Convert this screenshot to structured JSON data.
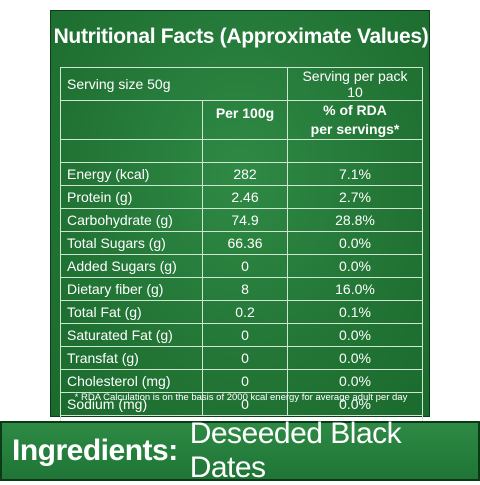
{
  "title": "Nutritional Facts (Approximate Values)",
  "serving_size": "Serving size 50g",
  "serving_per_pack": "Serving per pack 10",
  "col_per100": "Per 100g",
  "col_rda_line1": "% of RDA",
  "col_rda_line2": "per servings*",
  "rows": [
    {
      "name": "Energy (kcal)",
      "per100": "282",
      "rda": "7.1%"
    },
    {
      "name": "Protein (g)",
      "per100": "2.46",
      "rda": "2.7%"
    },
    {
      "name": "Carbohydrate (g)",
      "per100": "74.9",
      "rda": "28.8%"
    },
    {
      "name": "Total Sugars (g)",
      "per100": "66.36",
      "rda": "0.0%"
    },
    {
      "name": "Added Sugars (g)",
      "per100": "0",
      "rda": "0.0%"
    },
    {
      "name": "Dietary fiber  (g)",
      "per100": "8",
      "rda": "16.0%"
    },
    {
      "name": "Total Fat (g)",
      "per100": "0.2",
      "rda": "0.1%"
    },
    {
      "name": "Saturated Fat (g)",
      "per100": "0",
      "rda": "0.0%"
    },
    {
      "name": "Transfat (g)",
      "per100": "0",
      "rda": "0.0%"
    },
    {
      "name": "Cholesterol (mg)",
      "per100": "0",
      "rda": "0.0%"
    },
    {
      "name": "Sodium (mg)",
      "per100": "0",
      "rda": "0.0%"
    }
  ],
  "footnote": "* RDA Calculation is on the basis of 2000 kcal energy for average adult per day",
  "ingredients_label": "Ingredients:",
  "ingredients_value": "Deseeded Black Dates",
  "colors": {
    "panel_green": "#237636",
    "text": "#ffffff"
  }
}
